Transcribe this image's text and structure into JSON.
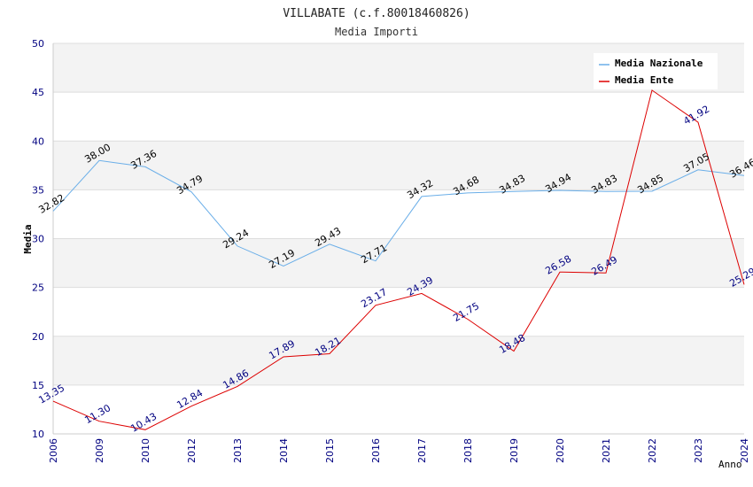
{
  "chart_data": {
    "type": "line",
    "title": "VILLABATE (c.f.80018460826)",
    "subtitle": "Media Importi",
    "xlabel": "Anno",
    "ylabel": "Media",
    "ylim": [
      10,
      50
    ],
    "yticks": [
      "10",
      "15",
      "20",
      "25",
      "30",
      "35",
      "40",
      "45",
      "50"
    ],
    "categories": [
      "2006",
      "2009",
      "2010",
      "2012",
      "2013",
      "2014",
      "2015",
      "2016",
      "2017",
      "2018",
      "2019",
      "2020",
      "2021",
      "2022",
      "2023",
      "2024"
    ],
    "legend_position": "top-right",
    "series": [
      {
        "name": "Media Nazionale",
        "color": "#6aaee8",
        "label_color": "#000000",
        "values": [
          32.82,
          38.0,
          37.36,
          34.79,
          29.24,
          27.19,
          29.43,
          27.71,
          34.32,
          34.68,
          34.83,
          34.94,
          34.83,
          34.85,
          37.05,
          36.46
        ],
        "labels": [
          "32.82",
          "38.00",
          "37.36",
          "34.79",
          "29.24",
          "27.19",
          "29.43",
          "27.71",
          "34.32",
          "34.68",
          "34.83",
          "34.94",
          "34.83",
          "34.85",
          "37.05",
          "36.46"
        ]
      },
      {
        "name": "Media Ente",
        "color": "#dd0000",
        "label_color": "#000080",
        "values": [
          13.35,
          11.3,
          10.43,
          12.84,
          14.86,
          17.89,
          18.21,
          23.17,
          24.39,
          21.75,
          18.48,
          26.58,
          26.49,
          45.2,
          41.92,
          25.29
        ],
        "labels": [
          "13.35",
          "11.30",
          "10.43",
          "12.84",
          "14.86",
          "17.89",
          "18.21",
          "23.17",
          "24.39",
          "21.75",
          "18.48",
          "26.58",
          "26.49",
          "",
          "41.92",
          "25.29"
        ]
      }
    ]
  }
}
